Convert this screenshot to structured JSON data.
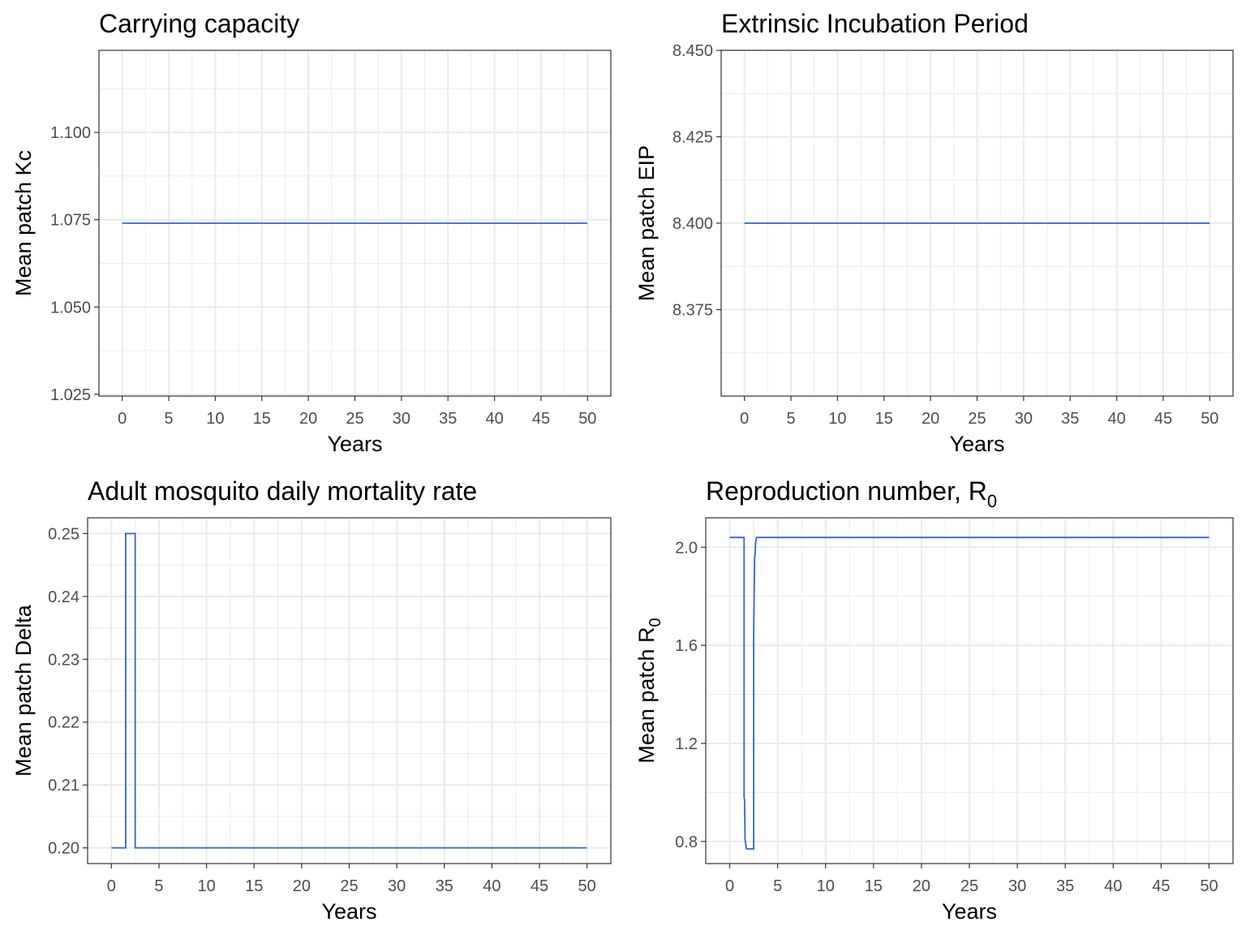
{
  "figure": {
    "panels": [
      {
        "id": "kc",
        "title": "Carrying capacity",
        "ylabel": "Mean patch Kc",
        "xlabel": "Years"
      },
      {
        "id": "eip",
        "title": "Extrinsic Incubation Period",
        "ylabel": "Mean patch EIP",
        "xlabel": "Years"
      },
      {
        "id": "delta",
        "title": "Adult mosquito daily mortality rate",
        "ylabel": "Mean patch Delta",
        "xlabel": "Years"
      },
      {
        "id": "r0",
        "title": "Reproduction number, R",
        "title_sub": "0",
        "ylabel": "Mean patch R",
        "ylabel_sub": "0",
        "xlabel": "Years"
      }
    ]
  },
  "chart_data": [
    {
      "type": "line",
      "title": "Carrying capacity",
      "xlabel": "Years",
      "ylabel": "Mean patch Kc",
      "xlim": [
        -2.5,
        52.5
      ],
      "ylim": [
        1.0245,
        1.1235
      ],
      "xticks": [
        0,
        5,
        10,
        15,
        20,
        25,
        30,
        35,
        40,
        45,
        50
      ],
      "yticks": [
        1.025,
        1.05,
        1.075,
        1.1
      ],
      "ytick_labels": [
        "1.025",
        "1.050",
        "1.075",
        "1.100"
      ],
      "grid": true,
      "color": "#3366cc",
      "series": [
        {
          "x": [
            0,
            50
          ],
          "y": [
            1.074,
            1.074
          ]
        }
      ]
    },
    {
      "type": "line",
      "title": "Extrinsic Incubation Period",
      "xlabel": "Years",
      "ylabel": "Mean patch EIP",
      "xlim": [
        -2.5,
        52.5
      ],
      "ylim": [
        8.35,
        8.45
      ],
      "xticks": [
        0,
        5,
        10,
        15,
        20,
        25,
        30,
        35,
        40,
        45,
        50
      ],
      "yticks": [
        8.375,
        8.4,
        8.425,
        8.45
      ],
      "ytick_labels": [
        "8.375",
        "8.400",
        "8.425",
        "8.450"
      ],
      "grid": true,
      "color": "#3366cc",
      "series": [
        {
          "x": [
            0,
            50
          ],
          "y": [
            8.4,
            8.4
          ]
        }
      ]
    },
    {
      "type": "line",
      "title": "Adult mosquito daily mortality rate",
      "xlabel": "Years",
      "ylabel": "Mean patch Delta",
      "xlim": [
        -2.5,
        52.5
      ],
      "ylim": [
        0.1975,
        0.2525
      ],
      "xticks": [
        0,
        5,
        10,
        15,
        20,
        25,
        30,
        35,
        40,
        45,
        50
      ],
      "yticks": [
        0.2,
        0.21,
        0.22,
        0.23,
        0.24,
        0.25
      ],
      "ytick_labels": [
        "0.20",
        "0.21",
        "0.22",
        "0.23",
        "0.24",
        "0.25"
      ],
      "grid": true,
      "color": "#3366cc",
      "series": [
        {
          "x": [
            0,
            1.5,
            1.5,
            2.5,
            2.5,
            50
          ],
          "y": [
            0.2,
            0.2,
            0.25,
            0.25,
            0.2,
            0.2
          ]
        }
      ]
    },
    {
      "type": "line",
      "title": "Reproduction number, R0",
      "xlabel": "Years",
      "ylabel": "Mean patch R0",
      "xlim": [
        -2.5,
        52.5
      ],
      "ylim": [
        0.71,
        2.12
      ],
      "xticks": [
        0,
        5,
        10,
        15,
        20,
        25,
        30,
        35,
        40,
        45,
        50
      ],
      "yticks": [
        0.8,
        1.2,
        1.6,
        2.0
      ],
      "ytick_labels": [
        "0.8",
        "1.2",
        "1.6",
        "2.0"
      ],
      "grid": true,
      "color": "#3366cc",
      "series": [
        {
          "x": [
            0,
            1.5,
            1.5,
            1.55,
            1.6,
            1.7,
            1.75,
            2.5,
            2.5,
            2.6,
            2.65,
            2.7,
            2.8,
            50
          ],
          "y": [
            2.04,
            2.04,
            0.98,
            0.97,
            0.81,
            0.78,
            0.77,
            0.77,
            1.65,
            1.96,
            1.97,
            2.02,
            2.04,
            2.04
          ]
        }
      ]
    }
  ]
}
